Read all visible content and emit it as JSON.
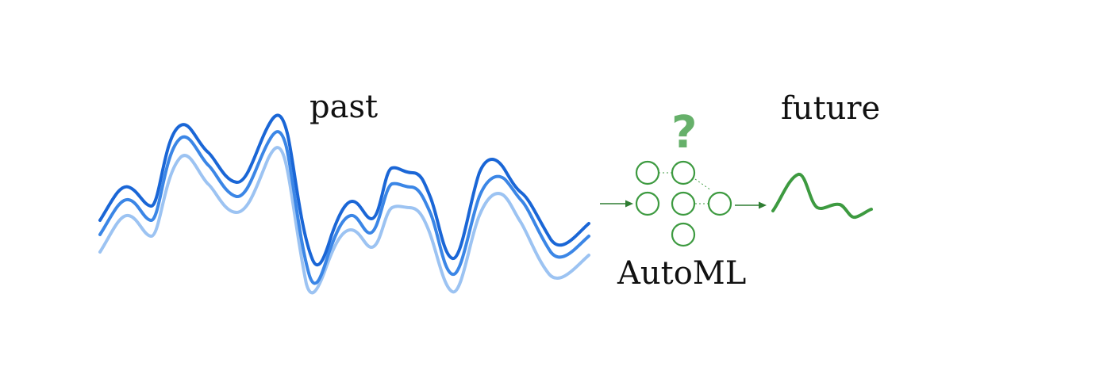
{
  "labels": {
    "past": "past",
    "future": "future",
    "automl": "AutoML",
    "question": "?"
  },
  "colors": {
    "past_dark": "#1a66d6",
    "past_mid": "#3b86e6",
    "past_light": "#9cc3f2",
    "green": "#3d9a40",
    "green_light": "#66b06a",
    "arrow": "#2f7d32",
    "text": "#111111"
  },
  "icons": {
    "network": "neural-network-icon",
    "question": "question-mark-icon",
    "forecast": "forecast-curve-icon"
  }
}
